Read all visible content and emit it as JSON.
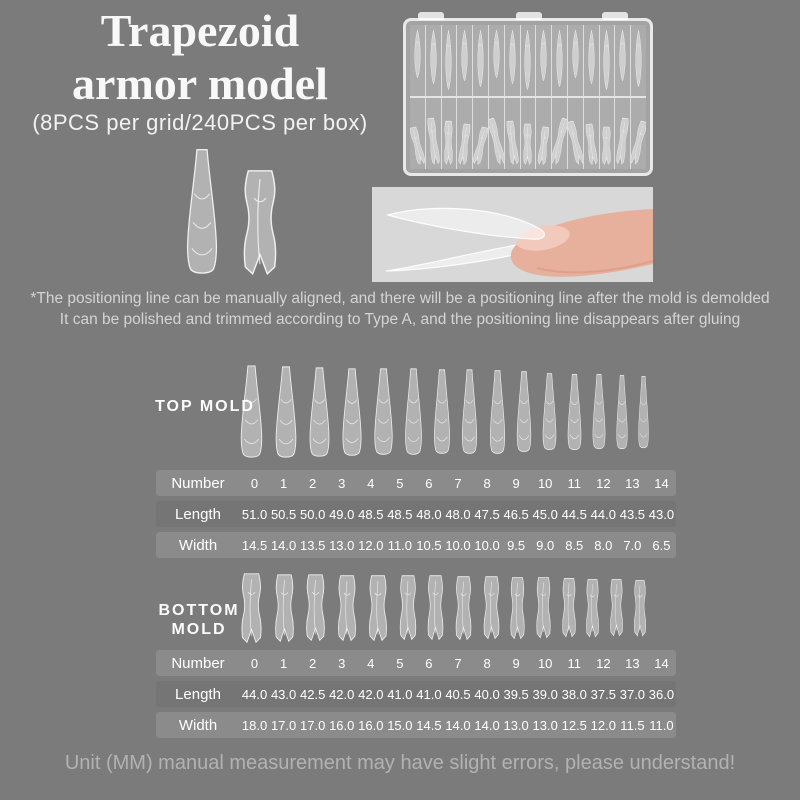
{
  "header": {
    "title_line1": "Trapezoid",
    "title_line2": "armor model",
    "subtitle": "(8PCS per grid/240PCS per box)"
  },
  "note": {
    "line1": "*The positioning line can be manually aligned, and there will be a positioning line after the mold is demolded",
    "line2": "It can be polished and trimmed according to Type A, and the positioning line disappears after gluing"
  },
  "top_mold": {
    "label": "TOP MOLD",
    "table": {
      "rows": [
        {
          "label": "Number",
          "values": [
            "0",
            "1",
            "2",
            "3",
            "4",
            "5",
            "6",
            "7",
            "8",
            "9",
            "10",
            "11",
            "12",
            "13",
            "14"
          ]
        },
        {
          "label": "Length",
          "values": [
            "51.0",
            "50.5",
            "50.0",
            "49.0",
            "48.5",
            "48.5",
            "48.0",
            "48.0",
            "47.5",
            "46.5",
            "45.0",
            "44.5",
            "44.0",
            "43.5",
            "43.0"
          ]
        },
        {
          "label": "Width",
          "values": [
            "14.5",
            "14.0",
            "13.5",
            "13.0",
            "12.0",
            "11.0",
            "10.5",
            "10.0",
            "10.0",
            "9.5",
            "9.0",
            "8.5",
            "8.0",
            "7.0",
            "6.5"
          ]
        }
      ]
    }
  },
  "bottom_mold": {
    "label_line1": "BOTTOM",
    "label_line2": "MOLD",
    "table": {
      "rows": [
        {
          "label": "Number",
          "values": [
            "0",
            "1",
            "2",
            "3",
            "4",
            "5",
            "6",
            "7",
            "8",
            "9",
            "10",
            "11",
            "12",
            "13",
            "14"
          ]
        },
        {
          "label": "Length",
          "values": [
            "44.0",
            "43.0",
            "42.5",
            "42.0",
            "42.0",
            "41.0",
            "41.0",
            "40.5",
            "40.0",
            "39.5",
            "39.0",
            "38.0",
            "37.5",
            "37.0",
            "36.0"
          ]
        },
        {
          "label": "Width",
          "values": [
            "18.0",
            "17.0",
            "17.0",
            "16.0",
            "16.0",
            "15.0",
            "14.5",
            "14.0",
            "14.0",
            "13.0",
            "13.0",
            "12.5",
            "12.0",
            "11.5",
            "11.0"
          ]
        }
      ]
    }
  },
  "footer": {
    "text": "Unit (MM) manual measurement may have slight errors, please understand!"
  },
  "colors": {
    "background": "#7b7b7b",
    "table_band_light": "#8b8b8b",
    "table_band_dark": "#757575",
    "text_white": "#ffffff",
    "note_text": "#d4d4d4",
    "footer_text": "#b2b2b2",
    "photo_bg": "#d8d8d8",
    "skin": "#e7b09c",
    "nail_pink": "#f2c9bd"
  }
}
